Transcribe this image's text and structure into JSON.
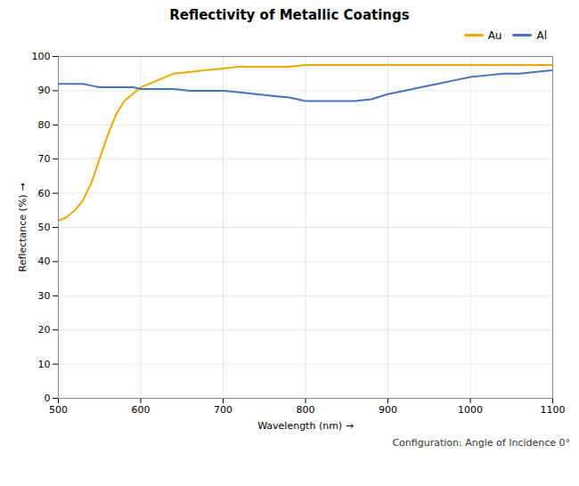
{
  "chart_data": {
    "type": "line",
    "title": "Reflectivity of Metallic Coatings",
    "x_label": "Wavelength (nm)",
    "y_label": "Reflectance (%)",
    "annotation": "Configuration: Angle of Incidence 0°",
    "x": [
      500,
      510,
      520,
      530,
      540,
      550,
      560,
      570,
      580,
      590,
      600,
      620,
      640,
      660,
      680,
      700,
      720,
      740,
      760,
      780,
      800,
      820,
      840,
      860,
      880,
      900,
      920,
      940,
      960,
      980,
      1000,
      1020,
      1040,
      1060,
      1080,
      1100
    ],
    "series": [
      {
        "name": "Au",
        "color": "#f0a800",
        "values": [
          52,
          53,
          55,
          58,
          63,
          70,
          77,
          83,
          87,
          89,
          91,
          93,
          95,
          95.5,
          96,
          96.5,
          97,
          97,
          97,
          97,
          97.5,
          97.5,
          97.5,
          97.5,
          97.5,
          97.5,
          97.5,
          97.5,
          97.5,
          97.5,
          97.5,
          97.5,
          97.5,
          97.5,
          97.5,
          97.5
        ]
      },
      {
        "name": "Al",
        "color": "#4472c4",
        "values": [
          92,
          92,
          92,
          92,
          91.5,
          91,
          91,
          91,
          91,
          91,
          90.5,
          90.5,
          90.5,
          90,
          90,
          90,
          89.5,
          89,
          88.5,
          88,
          87,
          87,
          87,
          87,
          87.5,
          89,
          90,
          91,
          92,
          93,
          94,
          94.5,
          95,
          95,
          95.5,
          96
        ]
      }
    ],
    "xlim": [
      500,
      1100
    ],
    "ylim": [
      0,
      100
    ],
    "xticks": [
      500,
      600,
      700,
      800,
      900,
      1000,
      1100
    ],
    "yticks": [
      0,
      10,
      20,
      30,
      40,
      50,
      60,
      70,
      80,
      90,
      100
    ],
    "grid": true,
    "legend": "upper right"
  }
}
